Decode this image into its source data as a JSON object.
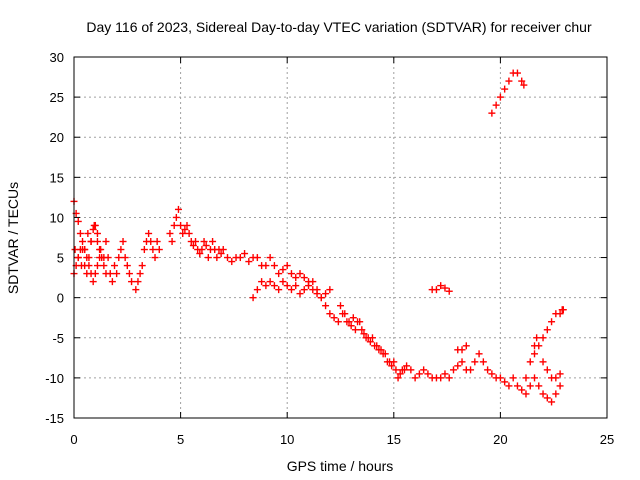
{
  "chart_data": {
    "type": "scatter",
    "title": "Day 116 of 2023, Sidereal Day-to-day VTEC variation (SDTVAR) for receiver chur",
    "xlabel": "GPS time / hours",
    "ylabel": "SDTVAR / TECUs",
    "xlim": [
      0,
      25
    ],
    "ylim": [
      -15,
      30
    ],
    "xticks": [
      0,
      5,
      10,
      15,
      20,
      25
    ],
    "yticks": [
      -15,
      -10,
      -5,
      0,
      5,
      10,
      15,
      20,
      25,
      30
    ],
    "grid": true,
    "marker": "+",
    "color": "#ff0000",
    "series": [
      {
        "name": "SDTVAR",
        "x": [
          0.0,
          0.1,
          0.2,
          0.3,
          0.4,
          0.5,
          0.6,
          0.7,
          0.8,
          0.9,
          1.0,
          1.1,
          1.2,
          1.3,
          1.4,
          1.5,
          0.0,
          0.1,
          0.2,
          0.3,
          0.4,
          0.5,
          0.6,
          0.7,
          0.8,
          0.9,
          1.0,
          1.1,
          1.2,
          0.05,
          0.2,
          0.35,
          0.5,
          0.65,
          0.8,
          0.95,
          1.1,
          1.25,
          1.4,
          1.5,
          1.6,
          1.7,
          1.8,
          1.9,
          2.0,
          2.1,
          2.2,
          2.3,
          2.4,
          2.5,
          2.6,
          2.7,
          2.9,
          3.0,
          3.1,
          3.2,
          3.3,
          3.4,
          3.5,
          3.6,
          3.7,
          3.8,
          3.9,
          4.0,
          4.5,
          4.6,
          4.7,
          4.8,
          4.9,
          5.0,
          5.1,
          5.2,
          5.3,
          5.4,
          5.5,
          5.6,
          5.7,
          5.8,
          5.9,
          6.0,
          6.1,
          6.2,
          6.3,
          6.4,
          6.5,
          6.6,
          6.7,
          6.8,
          6.9,
          7.0,
          7.2,
          7.4,
          7.6,
          7.8,
          8.0,
          8.2,
          8.4,
          8.6,
          8.8,
          9.0,
          9.2,
          9.4,
          9.6,
          9.8,
          10.0,
          10.2,
          10.4,
          10.6,
          10.8,
          11.0,
          8.4,
          8.6,
          8.8,
          9.0,
          9.2,
          9.4,
          9.6,
          9.8,
          10.0,
          10.2,
          10.4,
          10.6,
          10.8,
          11.0,
          11.2,
          11.4,
          11.6,
          11.8,
          12.0,
          11.2,
          11.4,
          11.6,
          11.8,
          12.0,
          12.2,
          12.4,
          12.6,
          12.8,
          13.0,
          13.2,
          13.4,
          13.6,
          13.8,
          14.0,
          14.2,
          14.4,
          14.6,
          14.8,
          15.0,
          12.5,
          12.7,
          12.9,
          13.1,
          13.3,
          13.5,
          13.7,
          13.9,
          14.1,
          14.3,
          14.5,
          14.7,
          14.9,
          15.1,
          15.3,
          15.5,
          15.2,
          15.4,
          15.6,
          15.8,
          16.0,
          16.2,
          16.4,
          16.6,
          16.8,
          17.0,
          17.2,
          17.4,
          17.6,
          17.8,
          18.0,
          18.2,
          18.4,
          18.6,
          18.8,
          19.0,
          19.2,
          19.4,
          19.6,
          19.8,
          16.8,
          17.0,
          17.2,
          17.4,
          17.6,
          18.0,
          18.2,
          18.4,
          20.0,
          20.2,
          20.4,
          20.6,
          20.8,
          21.0,
          21.2,
          21.4,
          21.6,
          21.8,
          22.0,
          22.2,
          22.4,
          22.6,
          22.8,
          21.6,
          21.8,
          22.0,
          22.2,
          22.4,
          22.6,
          22.8,
          22.9,
          22.95,
          21.2,
          21.4,
          21.6,
          21.7,
          22.0,
          22.2,
          22.4,
          22.6,
          22.8,
          19.6,
          19.8,
          20.0,
          20.2,
          20.4,
          20.6,
          20.8,
          21.0,
          21.1
        ],
        "y": [
          12,
          10.5,
          9.5,
          8,
          6,
          4,
          3,
          5,
          7,
          8.5,
          9,
          7,
          6,
          5,
          4,
          3,
          3,
          4,
          5,
          6,
          7,
          6,
          5,
          4,
          3,
          2,
          3,
          4,
          5,
          6,
          5,
          4,
          6,
          8,
          7,
          9,
          8,
          6,
          5,
          7,
          5,
          3,
          2,
          4,
          3,
          5,
          6,
          7,
          5,
          4,
          3,
          2,
          1,
          2,
          3,
          4,
          6,
          7,
          8,
          7,
          6,
          5,
          7,
          6,
          8,
          7,
          9,
          10,
          11,
          9,
          8,
          8.5,
          9,
          8,
          7,
          6.5,
          7,
          6,
          5.5,
          6,
          7,
          6.5,
          5,
          6,
          7,
          6,
          5,
          6,
          5.5,
          6,
          5,
          4.5,
          5,
          5,
          5.5,
          4.5,
          5,
          5,
          4,
          4,
          5,
          4,
          3,
          3.5,
          4,
          3,
          2.5,
          3,
          2.5,
          2,
          0,
          1,
          2,
          1.5,
          2,
          1.5,
          1,
          2,
          1.5,
          1,
          1.5,
          0.5,
          1,
          1.5,
          1,
          0.5,
          0,
          0.5,
          1,
          2,
          1,
          0,
          -1,
          -2,
          -2.5,
          -3,
          -2,
          -3,
          -3.5,
          -4,
          -3,
          -4.5,
          -5,
          -5,
          -6,
          -6.5,
          -7,
          -8,
          -8,
          -1,
          -2,
          -3,
          -2.5,
          -3,
          -4,
          -5,
          -5.5,
          -6,
          -6.5,
          -7,
          -8,
          -8.5,
          -9,
          -9.5,
          -9,
          -10,
          -9,
          -8.5,
          -9,
          -10,
          -9.5,
          -9,
          -9.5,
          -10,
          -10,
          -10,
          -9.5,
          -10,
          -9,
          -8.5,
          -8,
          -9,
          -9,
          -8,
          -7,
          -8,
          -9,
          -9.5,
          -10,
          1,
          1,
          1.5,
          1.2,
          0.8,
          -6.5,
          -6.5,
          -6,
          -10,
          -10.5,
          -11,
          -10,
          -11,
          -11.5,
          -12,
          -11,
          -10,
          -11,
          -12,
          -12.5,
          -13,
          -12,
          -11,
          -7,
          -6,
          -5,
          -4,
          -3,
          -2,
          -2,
          -1.5,
          -1.5,
          -10,
          -8,
          -6,
          -5,
          -8,
          -9,
          -10,
          -10,
          -9.5,
          23,
          24,
          25,
          26,
          27,
          28,
          28,
          27,
          26.5
        ]
      }
    ]
  }
}
